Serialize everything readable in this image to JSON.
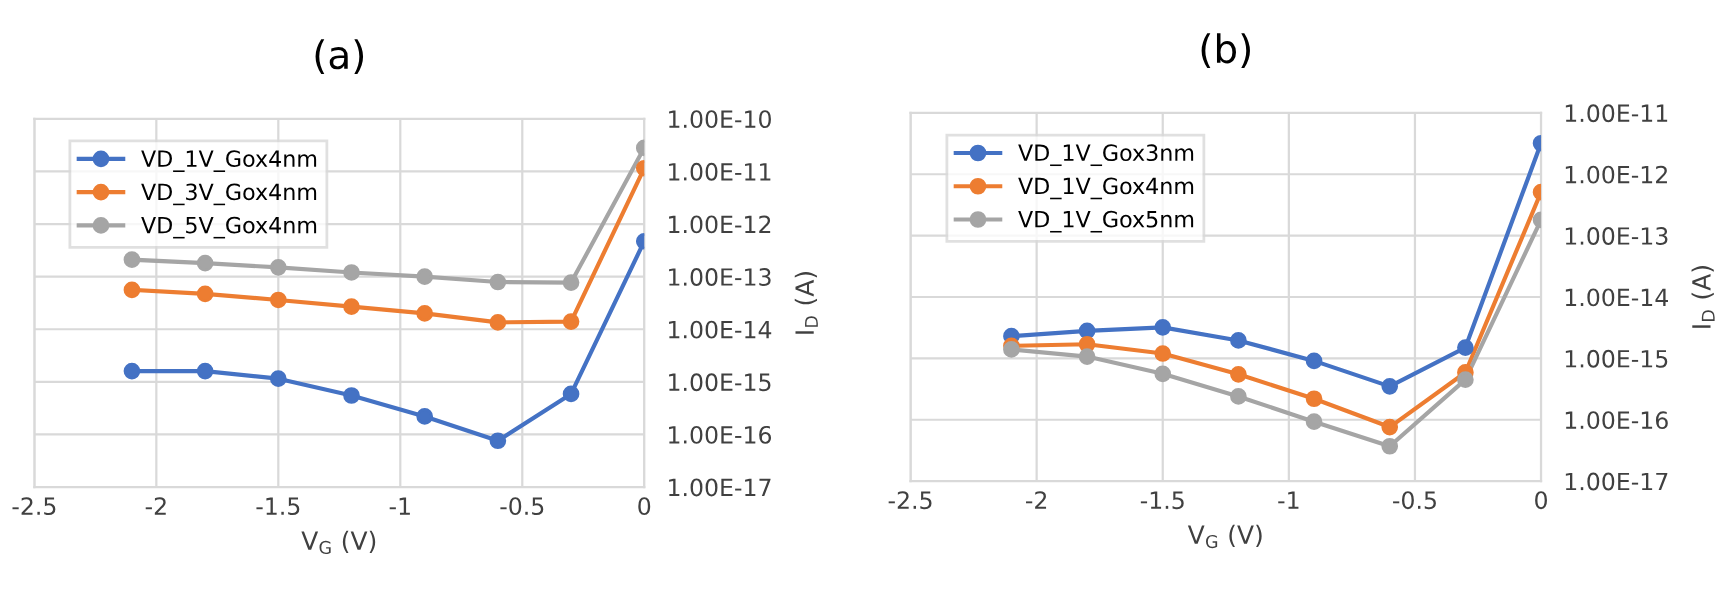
{
  "chart_data": [
    {
      "type": "line",
      "title": "(a)",
      "xlabel": "V$_{G}$ (V)",
      "ylabel": "I$_{D}$ (A)",
      "log": "y",
      "grid": true,
      "legend": "top left",
      "marker": "circle",
      "line_style": "solid",
      "x": [
        -2.1,
        -1.8,
        -1.5,
        -1.2,
        -0.9,
        -0.6,
        -0.3,
        0
      ],
      "series": [
        {
          "name": "VD_1V_Gox4nm",
          "color": "#4472c4",
          "values": [
            1.6e-15,
            1.6e-15,
            1.15e-15,
            5.5e-16,
            2.2e-16,
            7.6e-17,
            5.9e-16,
            4.7e-13
          ]
        },
        {
          "name": "VD_3V_Gox4nm",
          "color": "#ed7d31",
          "values": [
            5.6e-14,
            4.7e-14,
            3.6e-14,
            2.7e-14,
            2e-14,
            1.35e-14,
            1.4e-14,
            1.15e-11
          ]
        },
        {
          "name": "VD_5V_Gox4nm",
          "color": "#a5a5a5",
          "values": [
            2.1e-13,
            1.8e-13,
            1.5e-13,
            1.2e-13,
            1e-13,
            7.9e-14,
            7.7e-14,
            2.8e-11
          ]
        }
      ],
      "xlim": [
        -2.5,
        0
      ],
      "xticks": [
        -2.5,
        -2,
        -1.5,
        -1,
        -0.5,
        0
      ],
      "ylim": [
        1e-17,
        1e-10
      ],
      "yticks": [
        {
          "value": 1e-17,
          "label": "1.00E-17"
        },
        {
          "value": 1e-16,
          "label": "1.00E-16"
        },
        {
          "value": 1e-15,
          "label": "1.00E-15"
        },
        {
          "value": 1e-14,
          "label": "1.00E-14"
        },
        {
          "value": 1e-13,
          "label": "1.00E-13"
        },
        {
          "value": 1e-12,
          "label": "1.00E-12"
        },
        {
          "value": 1e-11,
          "label": "1.00E-11"
        },
        {
          "value": 1e-10,
          "label": "1.00E-10"
        }
      ]
    },
    {
      "type": "line",
      "title": "(b)",
      "xlabel": "V$_{G}$ (V)",
      "ylabel": "I$_{D}$ (A)",
      "log": "y",
      "grid": true,
      "legend": "top left",
      "marker": "circle",
      "line_style": "solid",
      "x": [
        -2.1,
        -1.8,
        -1.5,
        -1.2,
        -0.9,
        -0.6,
        -0.3,
        0
      ],
      "series": [
        {
          "name": "VD_1V_Gox3nm",
          "color": "#4472c4",
          "values": [
            2.3e-15,
            2.8e-15,
            3.2e-15,
            1.96e-15,
            9.1e-16,
            3.5e-16,
            1.5e-15,
            3.2e-12
          ]
        },
        {
          "name": "VD_1V_Gox4nm",
          "color": "#ed7d31",
          "values": [
            1.6e-15,
            1.7e-15,
            1.2e-15,
            5.5e-16,
            2.2e-16,
            7.6e-17,
            5.9e-16,
            5.1e-13
          ]
        },
        {
          "name": "VD_1V_Gox5nm",
          "color": "#a5a5a5",
          "values": [
            1.4e-15,
            1.07e-15,
            5.6e-16,
            2.4e-16,
            9.3e-17,
            3.7e-17,
            4.5e-16,
            1.8e-13
          ]
        }
      ],
      "xlim": [
        -2.5,
        0
      ],
      "xticks": [
        -2.5,
        -2,
        -1.5,
        -1,
        -0.5,
        0
      ],
      "ylim": [
        1e-17,
        1e-11
      ],
      "yticks": [
        {
          "value": 1e-17,
          "label": "1.00E-17"
        },
        {
          "value": 1e-16,
          "label": "1.00E-16"
        },
        {
          "value": 1e-15,
          "label": "1.00E-15"
        },
        {
          "value": 1e-14,
          "label": "1.00E-14"
        },
        {
          "value": 1e-13,
          "label": "1.00E-13"
        },
        {
          "value": 1e-12,
          "label": "1.00E-12"
        },
        {
          "value": 1e-11,
          "label": "1.00E-11"
        }
      ]
    }
  ]
}
